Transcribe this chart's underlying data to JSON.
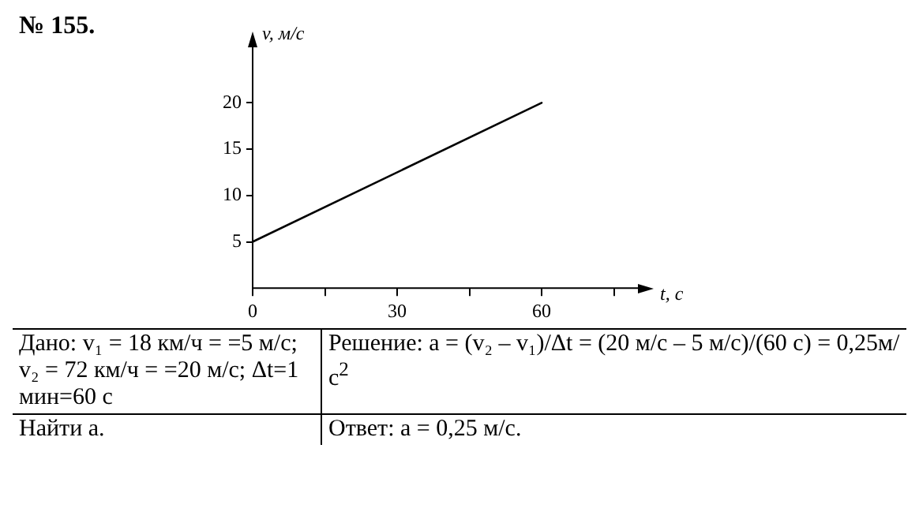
{
  "chart_data": {
    "type": "line",
    "title": "№ 155.",
    "xlabel": "t, с",
    "ylabel": "v, м/с",
    "x": [
      0,
      60
    ],
    "series": [
      {
        "color": "#000000",
        "values": [
          5,
          20
        ]
      }
    ],
    "xlim": [
      0,
      80
    ],
    "ylim": [
      0,
      26
    ],
    "xticks": [
      0,
      {
        "value": 15,
        "label": null
      },
      30,
      {
        "value": 45,
        "label": null
      },
      60,
      {
        "value": 75,
        "label": null
      }
    ],
    "yticks": [
      5,
      10,
      15,
      20
    ],
    "grid": false,
    "legend": false,
    "marker": "none",
    "line_style": "solid",
    "annotations": [
      "Дано: v₁ = 18 км/ч = =5 м/с; v₂ = 72 км/ч = =20 м/с; Δt=1 мин=60 с",
      "Найти a.",
      "Решение: a = (v₂ – v₁)/Δt = (20 м/с – 5 м/с)/(60 с) = 0,25м/с$^{2}$",
      "Ответ: a = 0,25 м/с."
    ]
  }
}
